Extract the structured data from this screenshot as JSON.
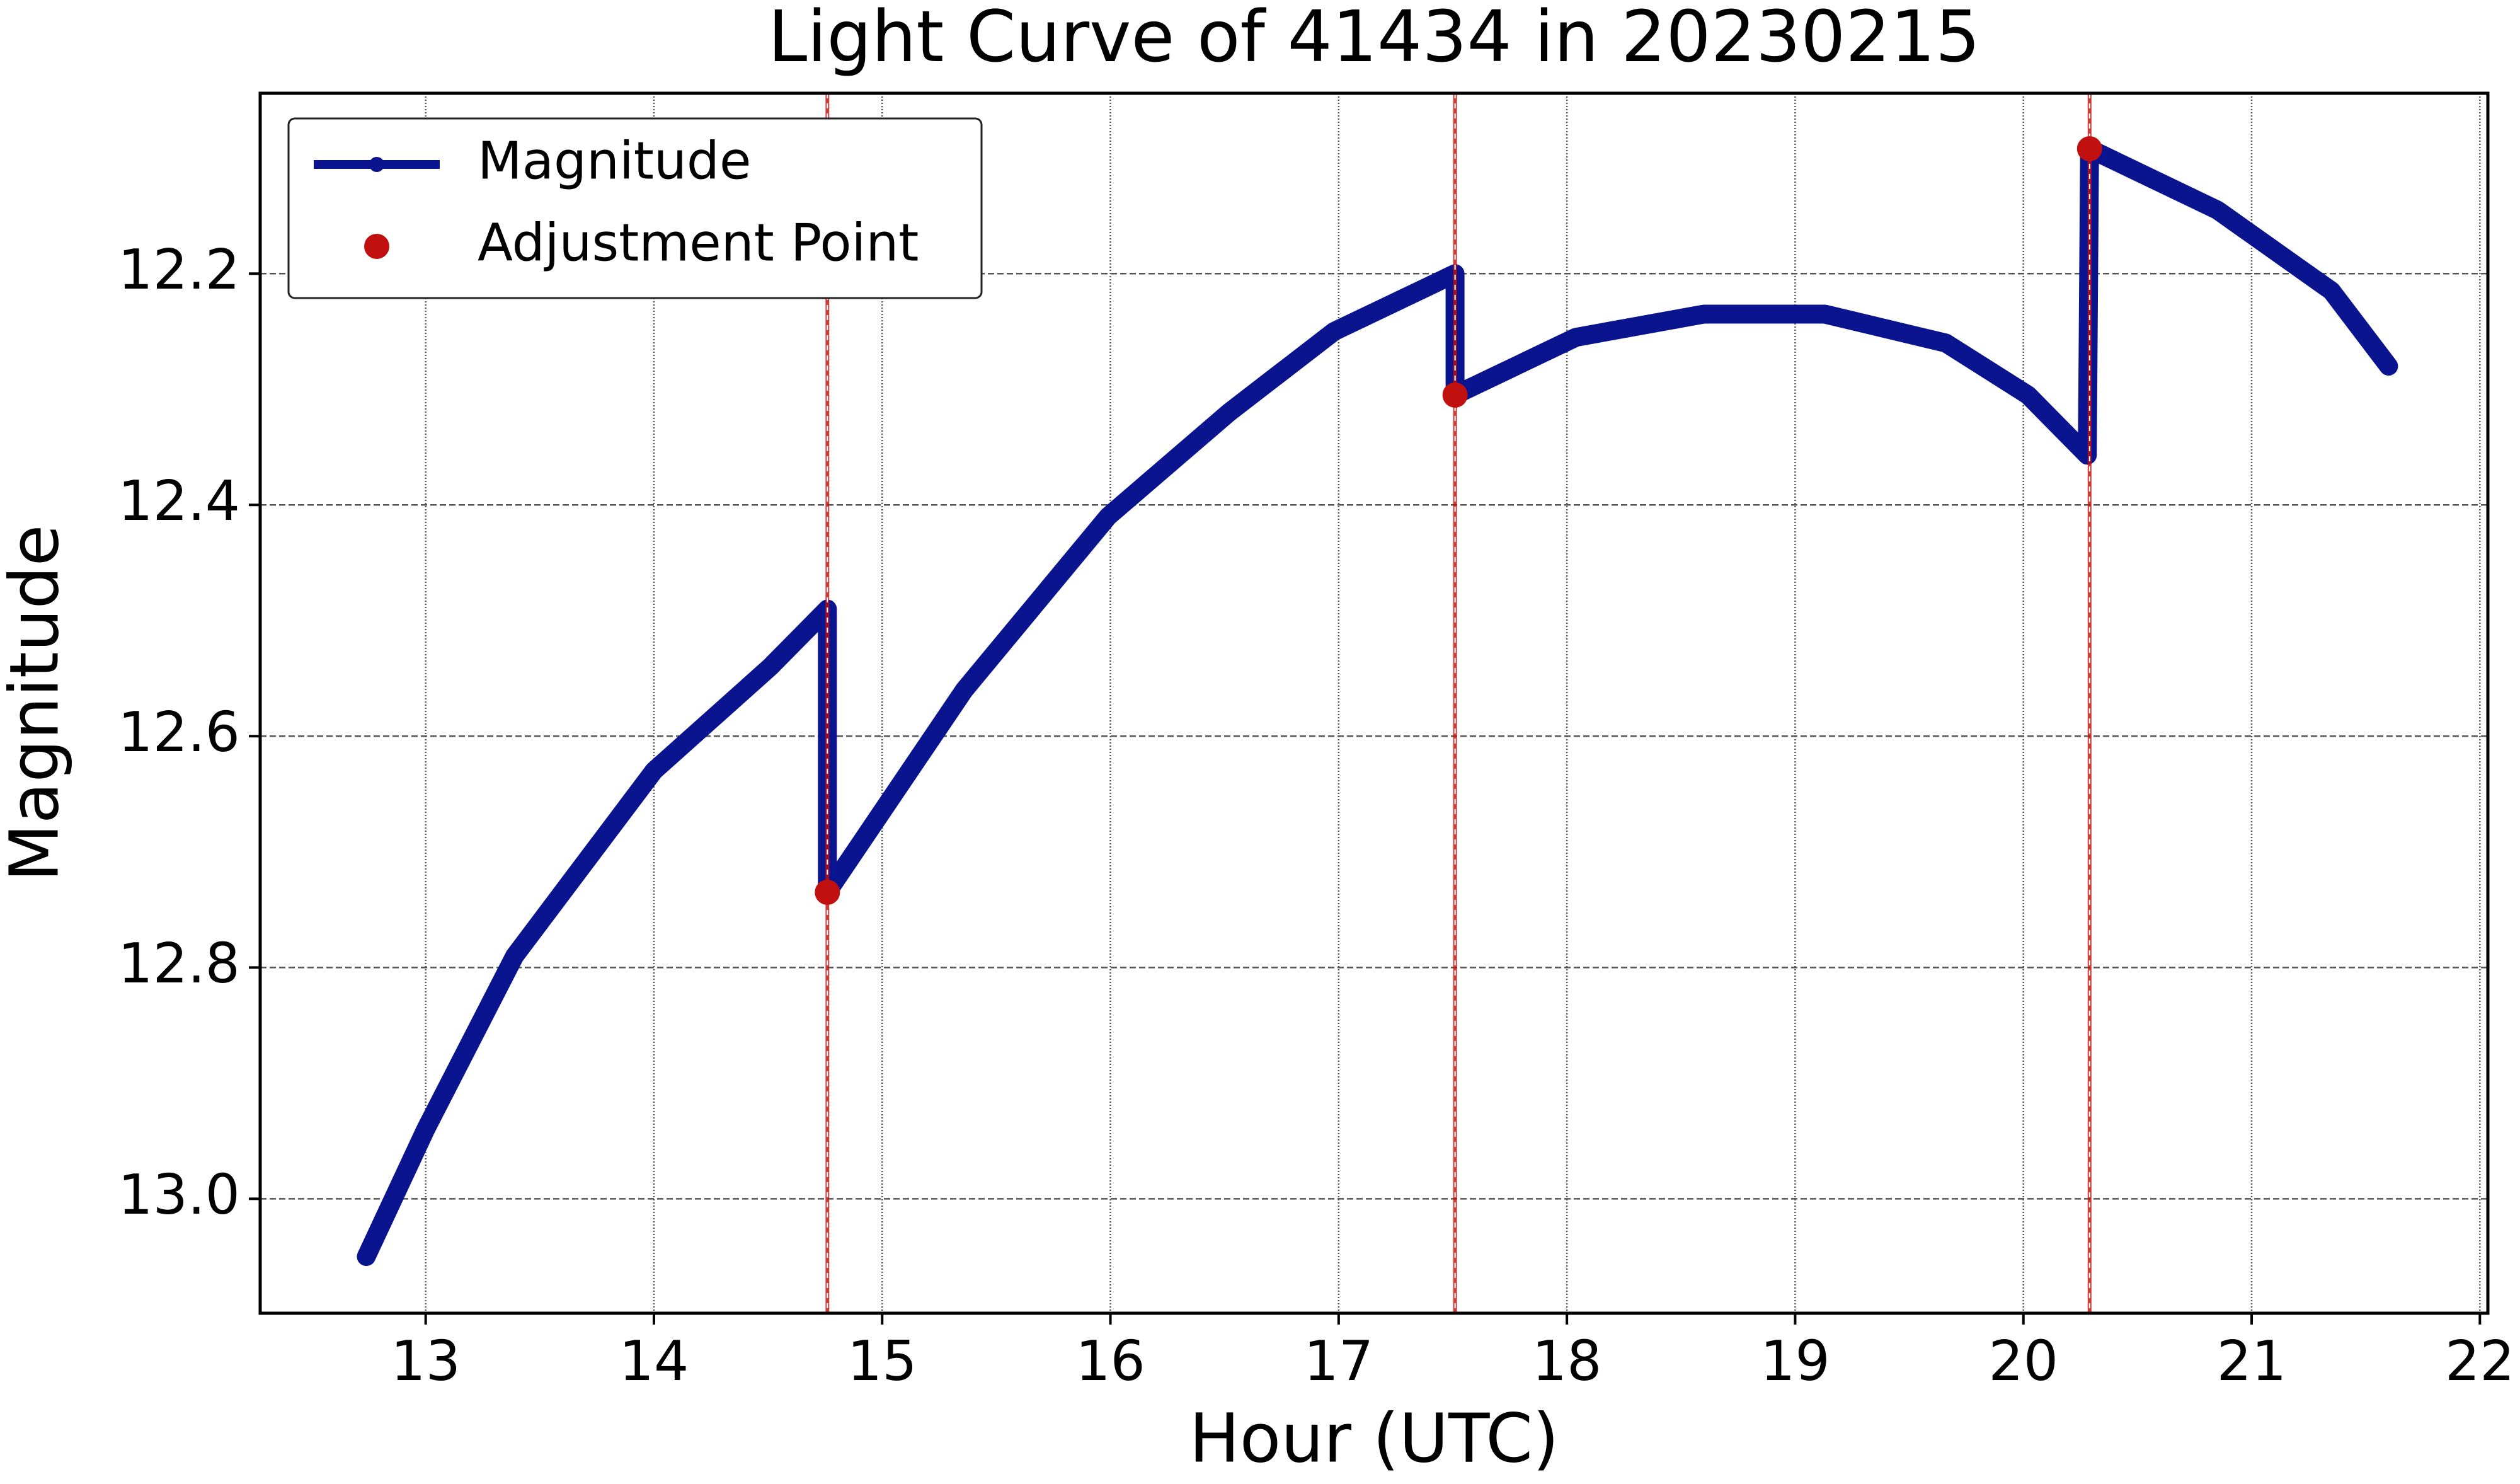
{
  "chart_data": {
    "type": "line",
    "title": "Light Curve of 41434 in 20230215",
    "x_label": "Hour (UTC)",
    "y_label": "Magnitude",
    "xlim": [
      12.275,
      22.035
    ],
    "ylim": [
      13.099,
      12.044
    ],
    "xticks": [
      13,
      14,
      15,
      16,
      17,
      18,
      19,
      20,
      21,
      22
    ],
    "yticks": [
      12.2,
      12.4,
      12.6,
      12.8,
      {
        "value": 13.0,
        "label": "13.0"
      }
    ],
    "grid": true,
    "legend": "upper left",
    "series": [
      {
        "name": "Magnitude",
        "color": "#0b148f",
        "type": "line",
        "x": [
          12.74,
          13.0,
          13.39,
          14.0,
          14.51,
          14.76,
          14.76,
          15.36,
          15.99,
          16.52,
          16.98,
          17.51,
          17.51,
          18.04,
          18.6,
          19.13,
          19.66,
          20.02,
          20.28,
          20.29,
          20.85,
          21.35,
          21.6
        ],
        "values": [
          13.05,
          12.94,
          12.79,
          12.63,
          12.54,
          12.49,
          12.735,
          12.56,
          12.41,
          12.32,
          12.25,
          12.2,
          12.305,
          12.255,
          12.235,
          12.235,
          12.26,
          12.305,
          12.357,
          12.092,
          12.145,
          12.215,
          12.28
        ]
      },
      {
        "name": "Adjustment Point",
        "color": "#c01010",
        "type": "scatter",
        "x": [
          14.76,
          17.51,
          20.29
        ],
        "values": [
          12.735,
          12.305,
          12.092
        ]
      }
    ]
  }
}
